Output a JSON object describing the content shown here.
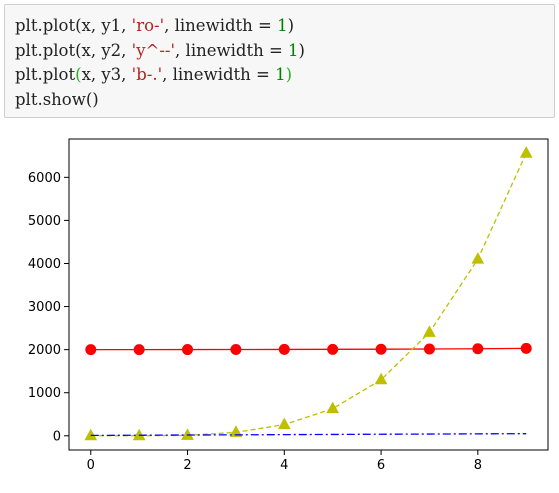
{
  "code_cell": {
    "lines": [
      {
        "fn": "plt.plot(x, y1, ",
        "fmt": "'ro-'",
        "kw": ", linewidth = ",
        "lw": "1",
        "close": ")"
      },
      {
        "fn": "plt.plot(x, y2, ",
        "fmt": "'y^--'",
        "kw": ", linewidth = ",
        "lw": "1",
        "close": ")"
      },
      {
        "fn": "plt.plot",
        "open_hl": "(",
        "fn_rest": "x, y3, ",
        "fmt": "'b-.'",
        "kw": ", linewidth = ",
        "lw": "1",
        "close_hl": ")"
      },
      {
        "fn": "plt.show()"
      }
    ]
  },
  "chart_data": {
    "type": "line",
    "x": [
      0,
      1,
      2,
      3,
      4,
      5,
      6,
      7,
      8,
      9
    ],
    "xlim": [
      -0.45,
      9.45
    ],
    "ylim": [
      -330,
      6890
    ],
    "xticks": [
      0,
      2,
      4,
      6,
      8
    ],
    "yticks": [
      0,
      1000,
      2000,
      3000,
      4000,
      5000,
      6000
    ],
    "xtick_labels": [
      "0",
      "2",
      "4",
      "6",
      "8"
    ],
    "ytick_labels": [
      "0",
      "1000",
      "2000",
      "3000",
      "4000",
      "5000",
      "6000"
    ],
    "grid": false,
    "series": [
      {
        "format": "ro-",
        "color": "#ff0000",
        "marker": "circle",
        "linestyle": "solid",
        "values": [
          2000,
          2001,
          2002,
          2003,
          2005,
          2007,
          2010,
          2015,
          2020,
          2030
        ]
      },
      {
        "format": "y^--",
        "color": "#bfbf00",
        "marker": "triangle",
        "linestyle": "dashed",
        "values": [
          0,
          1,
          10,
          80,
          260,
          630,
          1300,
          2400,
          4100,
          6560
        ]
      },
      {
        "format": "b-.",
        "color": "#0000ff",
        "marker": "none",
        "linestyle": "dashdot",
        "values": [
          9,
          13,
          18,
          22,
          27,
          31,
          36,
          40,
          45,
          49
        ]
      }
    ]
  }
}
